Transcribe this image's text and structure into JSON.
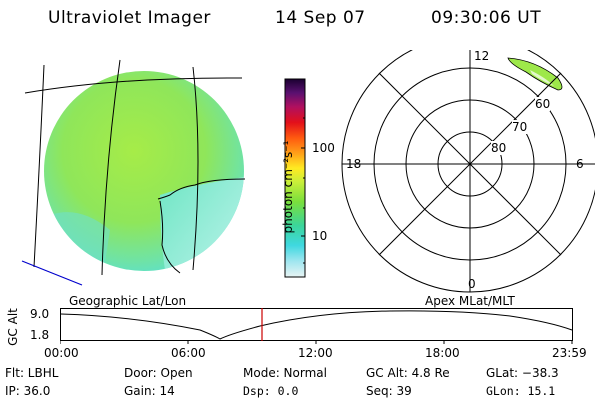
{
  "header": {
    "title": "Ultraviolet Imager",
    "date": "14 Sep 07",
    "time": "09:30:06 UT"
  },
  "colorbar": {
    "unit_label": "photon cm⁻²s⁻¹",
    "tick_100": "100",
    "tick_10": "10"
  },
  "geo_panel": {
    "caption": "Geographic Lat/Lon"
  },
  "polar_panel": {
    "caption": "Apex MLat/MLT",
    "mlt_top": "12",
    "mlt_left": "18",
    "mlt_right": "6",
    "mlt_bottom": "0",
    "lat_60": "60",
    "lat_70": "70",
    "lat_80": "80"
  },
  "altitude_strip": {
    "ylabel": "GC Alt",
    "y_max": "9.0",
    "y_min": "1.8",
    "x_ticks": [
      "00:00",
      "06:00",
      "12:00",
      "18:00",
      "23:59"
    ]
  },
  "status": {
    "flt": "Flt: LBHL",
    "ip": "IP: 36.0",
    "door": "Door: Open",
    "gain": "Gain: 14",
    "mode": "Mode: Normal",
    "dsp": "Dsp:     0.0",
    "gc_alt": "GC Alt: 4.8 Re",
    "seq": "Seq: 39",
    "glat": "GLat: −38.3",
    "glon": "GLon:  15.1"
  },
  "colors": {
    "disk_green": "#9ee84a",
    "disk_cyan": "#5fe0d8",
    "cursor_red": "#cc0000",
    "track_blue": "#0000cc"
  }
}
